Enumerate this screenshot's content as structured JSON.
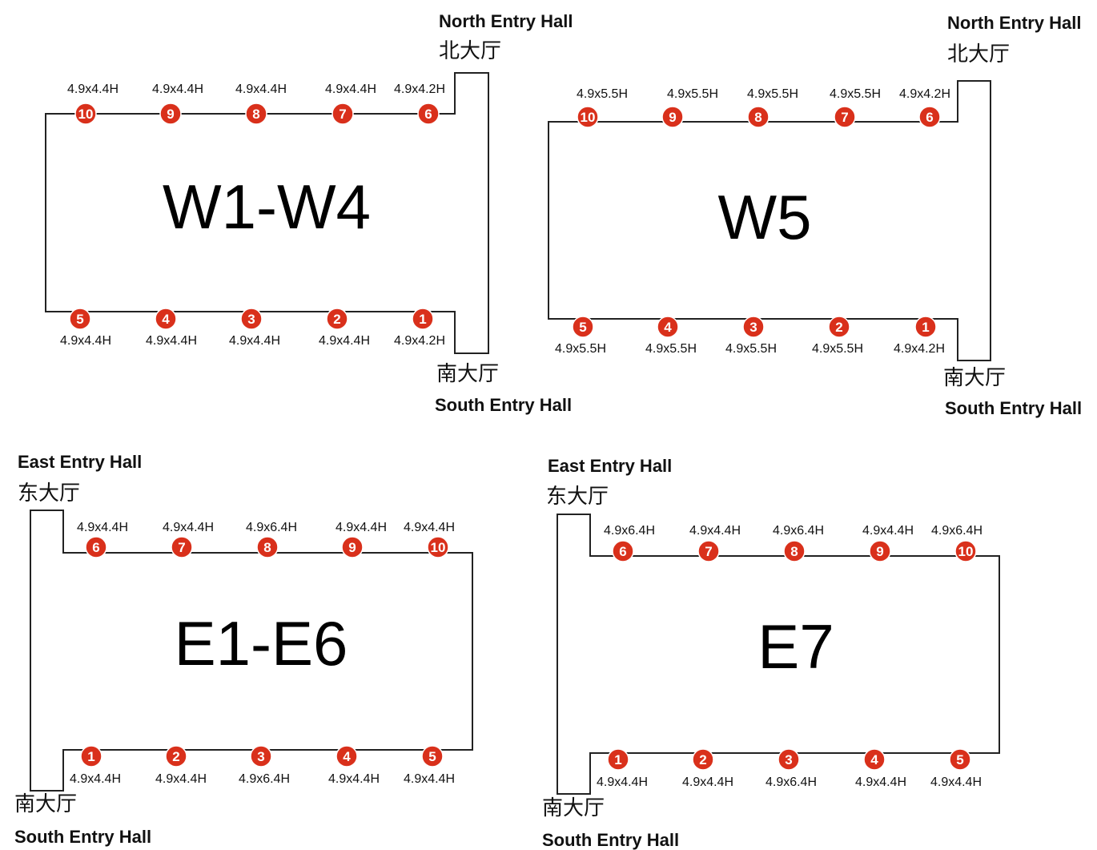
{
  "colors": {
    "door_marker": "#d9301b",
    "outline": "#222222"
  },
  "plans": [
    {
      "id": "w1-w4",
      "title": "W1-W4",
      "entry_top_en": "North Entry Hall",
      "entry_top_cn": "北大厅",
      "entry_bottom_cn": "南大厅",
      "entry_bottom_en": "South Entry Hall",
      "top_doors": [
        {
          "num": "10",
          "size": "4.9x4.4H"
        },
        {
          "num": "9",
          "size": "4.9x4.4H"
        },
        {
          "num": "8",
          "size": "4.9x4.4H"
        },
        {
          "num": "7",
          "size": "4.9x4.4H"
        },
        {
          "num": "6",
          "size": "4.9x4.2H"
        }
      ],
      "bottom_doors": [
        {
          "num": "5",
          "size": "4.9x4.4H"
        },
        {
          "num": "4",
          "size": "4.9x4.4H"
        },
        {
          "num": "3",
          "size": "4.9x4.4H"
        },
        {
          "num": "2",
          "size": "4.9x4.4H"
        },
        {
          "num": "1",
          "size": "4.9x4.2H"
        }
      ]
    },
    {
      "id": "w5",
      "title": "W5",
      "entry_top_en": "North Entry Hall",
      "entry_top_cn": "北大厅",
      "entry_bottom_cn": "南大厅",
      "entry_bottom_en": "South Entry Hall",
      "top_doors": [
        {
          "num": "10",
          "size": "4.9x5.5H"
        },
        {
          "num": "9",
          "size": "4.9x5.5H"
        },
        {
          "num": "8",
          "size": "4.9x5.5H"
        },
        {
          "num": "7",
          "size": "4.9x5.5H"
        },
        {
          "num": "6",
          "size": "4.9x4.2H"
        }
      ],
      "bottom_doors": [
        {
          "num": "5",
          "size": "4.9x5.5H"
        },
        {
          "num": "4",
          "size": "4.9x5.5H"
        },
        {
          "num": "3",
          "size": "4.9x5.5H"
        },
        {
          "num": "2",
          "size": "4.9x5.5H"
        },
        {
          "num": "1",
          "size": "4.9x4.2H"
        }
      ]
    },
    {
      "id": "e1-e6",
      "title": "E1-E6",
      "entry_top_en": "East Entry Hall",
      "entry_top_cn": "东大厅",
      "entry_bottom_cn": "南大厅",
      "entry_bottom_en": "South Entry Hall",
      "top_doors": [
        {
          "num": "6",
          "size": "4.9x4.4H"
        },
        {
          "num": "7",
          "size": "4.9x4.4H"
        },
        {
          "num": "8",
          "size": "4.9x6.4H"
        },
        {
          "num": "9",
          "size": "4.9x4.4H"
        },
        {
          "num": "10",
          "size": "4.9x4.4H"
        }
      ],
      "bottom_doors": [
        {
          "num": "1",
          "size": "4.9x4.4H"
        },
        {
          "num": "2",
          "size": "4.9x4.4H"
        },
        {
          "num": "3",
          "size": "4.9x6.4H"
        },
        {
          "num": "4",
          "size": "4.9x4.4H"
        },
        {
          "num": "5",
          "size": "4.9x4.4H"
        }
      ]
    },
    {
      "id": "e7",
      "title": "E7",
      "entry_top_en": "East Entry Hall",
      "entry_top_cn": "东大厅",
      "entry_bottom_cn": "南大厅",
      "entry_bottom_en": "South Entry Hall",
      "top_doors": [
        {
          "num": "6",
          "size": "4.9x6.4H"
        },
        {
          "num": "7",
          "size": "4.9x4.4H"
        },
        {
          "num": "8",
          "size": "4.9x6.4H"
        },
        {
          "num": "9",
          "size": "4.9x4.4H"
        },
        {
          "num": "10",
          "size": "4.9x6.4H"
        }
      ],
      "bottom_doors": [
        {
          "num": "1",
          "size": "4.9x4.4H"
        },
        {
          "num": "2",
          "size": "4.9x4.4H"
        },
        {
          "num": "3",
          "size": "4.9x6.4H"
        },
        {
          "num": "4",
          "size": "4.9x4.4H"
        },
        {
          "num": "5",
          "size": "4.9x4.4H"
        }
      ]
    }
  ]
}
